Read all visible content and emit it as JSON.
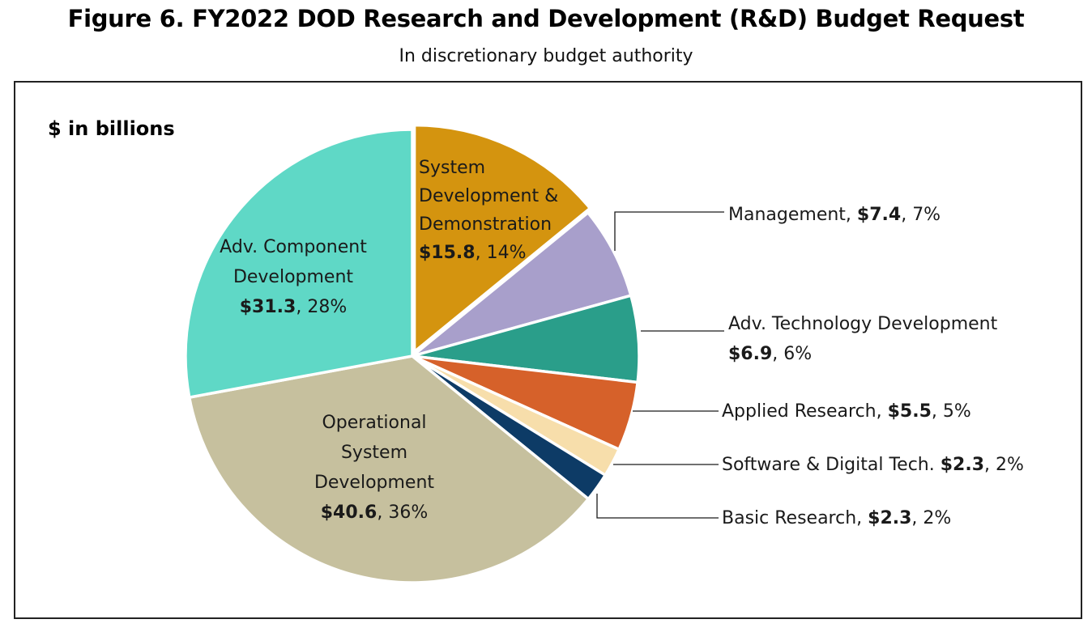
{
  "figure": {
    "title": "Figure 6. FY2022 DOD Research and Development (R&D) Budget Request",
    "subtitle": "In discretionary budget authority"
  },
  "chart_data": {
    "type": "pie",
    "title": "Figure 6. FY2022 DOD Research and Development (R&D) Budget Request",
    "subtitle": "In discretionary budget authority",
    "unit_label": "$ in billions",
    "start_angle_deg": 0,
    "direction": "clockwise",
    "slices": [
      {
        "name": "System Development & Demonstration",
        "label_lines": [
          "System",
          "Development &",
          "Demonstration"
        ],
        "value": 15.8,
        "value_text": "$15.8",
        "pct_text": "14%",
        "color": "#D4940F"
      },
      {
        "name": "Management",
        "label_lines": [
          "Management,"
        ],
        "value": 7.4,
        "value_text": "$7.4",
        "pct_text": "7%",
        "color": "#A89FCB"
      },
      {
        "name": "Adv. Technology Development",
        "label_lines": [
          "Adv. Technology Development"
        ],
        "value": 6.9,
        "value_text": "$6.9",
        "pct_text": "6%",
        "color": "#2A9E8A"
      },
      {
        "name": "Applied Research",
        "label_lines": [
          "Applied Research,"
        ],
        "value": 5.5,
        "value_text": "$5.5",
        "pct_text": "5%",
        "color": "#D6612A"
      },
      {
        "name": "Software & Digital Tech.",
        "label_lines": [
          "Software & Digital Tech."
        ],
        "value": 2.3,
        "value_text": "$2.3",
        "pct_text": "2%",
        "color": "#F7DEAB"
      },
      {
        "name": "Basic Research",
        "label_lines": [
          "Basic Research,"
        ],
        "value": 2.3,
        "value_text": "$2.3",
        "pct_text": "2%",
        "color": "#0D3B66"
      },
      {
        "name": "Operational System Development",
        "label_lines": [
          "Operational",
          "System",
          "Development"
        ],
        "value": 40.6,
        "value_text": "$40.6",
        "pct_text": "36%",
        "color": "#C6C09E"
      },
      {
        "name": "Adv. Component Development",
        "label_lines": [
          "Adv. Component",
          "Development"
        ],
        "value": 31.3,
        "value_text": "$31.3",
        "pct_text": "28%",
        "color": "#5FD8C6"
      }
    ]
  }
}
